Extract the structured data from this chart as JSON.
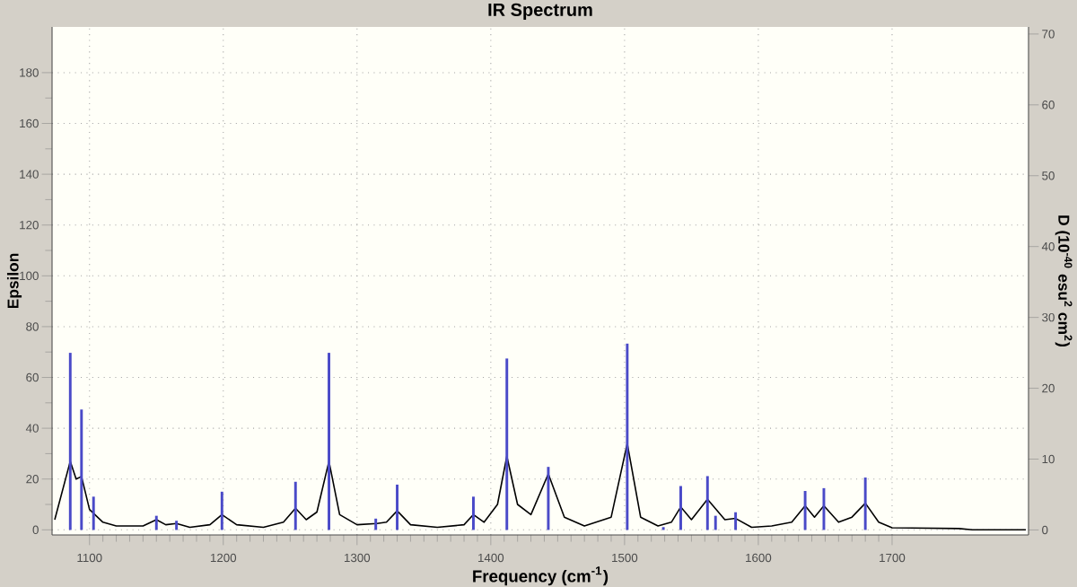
{
  "chart_data": {
    "type": "line",
    "title": "IR Spectrum",
    "xlabel": "Frequency (cm$^{-1}$)",
    "ylabel": "Epsilon",
    "y2label": "D (10$^{-40}$ esu$^{2}$ cm$^{2}$)",
    "xlim": [
      1072,
      1802
    ],
    "xticks": [
      1100,
      1200,
      1300,
      1400,
      1500,
      1600,
      1700
    ],
    "ylim": [
      -2,
      198
    ],
    "yticks": [
      0,
      20,
      40,
      60,
      80,
      100,
      120,
      140,
      160,
      180
    ],
    "y2lim": [
      -0.7,
      71
    ],
    "y2ticks": [
      0,
      10,
      20,
      30,
      40,
      50,
      60,
      70
    ],
    "grid": true,
    "marker": "none",
    "line_style": "solid",
    "series": [
      {
        "color": "#000000",
        "x": [
          1074,
          1085.6,
          1090,
          1094,
          1100,
          1110,
          1120,
          1140,
          1150,
          1157,
          1165,
          1175,
          1190,
          1199,
          1210,
          1230,
          1245,
          1254,
          1262,
          1270,
          1279,
          1287,
          1300,
          1315,
          1322,
          1330,
          1340,
          1360,
          1380,
          1387,
          1395,
          1405,
          1412,
          1420,
          1430,
          1443,
          1455,
          1470,
          1490,
          1502,
          1512,
          1525,
          1535,
          1542,
          1550,
          1562,
          1575,
          1583,
          1595,
          1610,
          1625,
          1635,
          1642,
          1649,
          1660,
          1670,
          1680,
          1690,
          1700,
          1750,
          1760,
          1800
        ],
        "values": [
          4,
          27,
          20,
          21,
          8,
          3,
          1.5,
          1.5,
          4,
          2,
          2.5,
          1,
          2,
          6,
          2,
          1,
          3,
          8.5,
          4,
          7,
          27,
          6,
          2,
          2.5,
          3,
          7.5,
          2,
          1,
          2,
          6,
          3,
          10,
          29,
          10,
          6,
          22,
          5,
          1.5,
          5,
          34,
          5,
          1.5,
          3,
          9,
          4,
          12,
          4,
          4.5,
          1,
          1.5,
          3,
          9.5,
          5,
          9.5,
          3,
          5,
          10.5,
          3,
          0.8,
          0.5,
          0,
          0
        ]
      },
      {
        "type": "bar",
        "axis": "y2",
        "color": "#4a4ac8",
        "x": [
          1085.6,
          1094,
          1103,
          1150,
          1165,
          1199,
          1254,
          1279,
          1314,
          1330,
          1387,
          1412,
          1443,
          1502,
          1529,
          1542,
          1562,
          1568,
          1583,
          1635,
          1649,
          1680
        ],
        "values": [
          25,
          17,
          4.7,
          2,
          1.3,
          5.4,
          6.8,
          25,
          1.6,
          6.4,
          4.7,
          24.2,
          8.9,
          26.3,
          0.4,
          6.2,
          7.6,
          2,
          2.5,
          5.5,
          5.9,
          7.4
        ]
      }
    ]
  }
}
